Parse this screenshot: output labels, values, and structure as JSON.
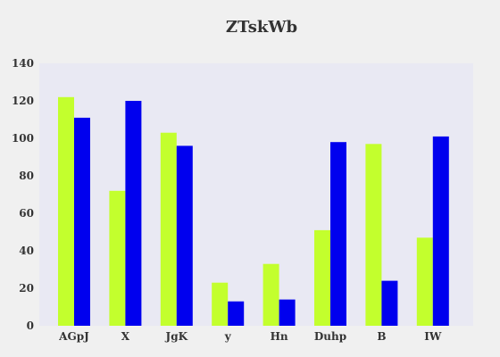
{
  "chart_data": {
    "type": "bar",
    "title": "ZTskWb",
    "xlabel": "",
    "ylabel": "",
    "categories": [
      "AGpJ",
      "X",
      "JgK",
      "y",
      "Hn",
      "Duhp",
      "B",
      "IW"
    ],
    "series": [
      {
        "values": [
          122,
          72,
          103,
          23,
          33,
          51,
          97,
          47
        ],
        "color": "#c3ff2d"
      },
      {
        "values": [
          111,
          120,
          96,
          13,
          14,
          98,
          24,
          101
        ],
        "color": "#0000ee"
      }
    ],
    "ylim": [
      0,
      140
    ],
    "yticks": [
      0,
      20,
      40,
      60,
      80,
      100,
      120,
      140
    ],
    "plot_background": "#e9e9f3",
    "page_background": "#f0f0f0",
    "grid": false,
    "legend": "none"
  }
}
